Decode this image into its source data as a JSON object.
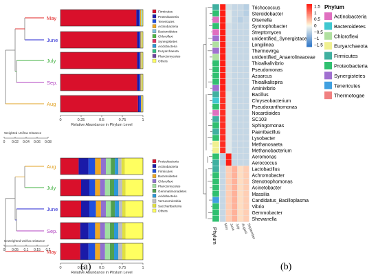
{
  "panel_labels": [
    "(a)",
    "(b)"
  ],
  "colors": {
    "Firmicutes": "#d9102b",
    "Proteobacteria": "#d9102b",
    "Tenericutes": "#1c3fd0",
    "Actinobacteria": "#1c3fd0",
    "Bacteroidetes": "#f0a820",
    "Chloroflexi": "#2c98d8",
    "Synergistetes": "#9ad0f0",
    "Acidobacteria": "#c0c0c0",
    "Euryarchaeota": "#7070d8",
    "Planctomycetes": "#50d040",
    "Others": "#ffff40",
    "Gemmatimonadetes": "#7fbf7f",
    "Verrucomicrobia": "#e0e060",
    "Saccharibacteria": "#ffe000"
  },
  "chart_data": [
    {
      "type": "bar",
      "title": "",
      "xlabel": "Relative Abundance in Phylum Level",
      "ylabel": "",
      "xlim": [
        0,
        1
      ],
      "xticks": [
        "0",
        "0.25",
        "0.5",
        "0.75",
        "1"
      ],
      "categories": [
        "May",
        "June",
        "July",
        "Sep.",
        "Aug"
      ],
      "category_colors": [
        "#e02020",
        "#2020d0",
        "#40b040",
        "#b040c0",
        "#e0a020"
      ],
      "legend": [
        "Firmicutes",
        "Proteobacteria",
        "Tenericutes",
        "Actinobacteria",
        "Bacteroidetes",
        "Chloroflexi",
        "Synergistetes",
        "Acidobacteria",
        "Euryarchaeota",
        "Planctomycetes",
        "Others"
      ],
      "legend_colors": [
        "#d9102b",
        "#1a1aa8",
        "#2050e0",
        "#f0a820",
        "#80c0e0",
        "#4ab840",
        "#e03060",
        "#2c98d8",
        "#30c080",
        "#7040a0",
        "#ffff60"
      ],
      "series": [
        {
          "name": "Firmicutes",
          "values": [
            0.92,
            0.93,
            0.93,
            0.93,
            0.94
          ]
        },
        {
          "name": "Proteobacteria",
          "values": [
            0.03,
            0.025,
            0.025,
            0.025,
            0.02
          ]
        },
        {
          "name": "Tenericutes",
          "values": [
            0.015,
            0.015,
            0.015,
            0.015,
            0.015
          ]
        },
        {
          "name": "Actinobacteria",
          "values": [
            0.01,
            0.01,
            0.01,
            0.01,
            0.01
          ]
        },
        {
          "name": "Bacteroidetes",
          "values": [
            0.01,
            0.005,
            0.005,
            0.005,
            0.005
          ]
        },
        {
          "name": "Others",
          "values": [
            0.015,
            0.015,
            0.015,
            0.015,
            0.01
          ]
        }
      ],
      "dendrogram_axis_label": "Weighted Unifrac Distance",
      "dendrogram_ticks": [
        "0",
        "0.02",
        "0.04",
        "0.06",
        "0.08"
      ]
    },
    {
      "type": "bar",
      "title": "",
      "xlabel": "Relative Abundance in Phylum Level",
      "ylabel": "",
      "xlim": [
        0,
        1
      ],
      "xticks": [
        "0",
        "0.25",
        "0.5",
        "0.75",
        "1"
      ],
      "categories": [
        "Aug",
        "July",
        "June",
        "Sep.",
        "May"
      ],
      "category_colors": [
        "#e0a020",
        "#40b040",
        "#2020d0",
        "#b040c0",
        "#e02020"
      ],
      "legend": [
        "Proteobacteria",
        "Actinobacteria",
        "Firmicutes",
        "Bacteroidetes",
        "Chloroflexi",
        "Planctomycetes",
        "Gemmatimonadetes",
        "Acidobacteria",
        "Verrucomicrobia",
        "Saccharibacteria",
        "Others"
      ],
      "legend_colors": [
        "#d9102b",
        "#1a1aa8",
        "#2050e0",
        "#f0a820",
        "#9070d0",
        "#a0e0a0",
        "#50a050",
        "#2c98d8",
        "#c0c0c0",
        "#e0e040",
        "#ffff60"
      ],
      "series": [
        {
          "name": "Proteobacteria",
          "values": [
            0.22,
            0.25,
            0.25,
            0.24,
            0.24
          ]
        },
        {
          "name": "Actinobacteria",
          "values": [
            0.12,
            0.1,
            0.1,
            0.1,
            0.1
          ]
        },
        {
          "name": "Firmicutes",
          "values": [
            0.08,
            0.07,
            0.08,
            0.08,
            0.08
          ]
        },
        {
          "name": "Bacteroidetes",
          "values": [
            0.07,
            0.06,
            0.06,
            0.06,
            0.06
          ]
        },
        {
          "name": "Chloroflexi",
          "values": [
            0.06,
            0.06,
            0.06,
            0.06,
            0.06
          ]
        },
        {
          "name": "Planctomycetes",
          "values": [
            0.06,
            0.06,
            0.06,
            0.06,
            0.06
          ]
        },
        {
          "name": "Gemmatimonadetes",
          "values": [
            0.05,
            0.05,
            0.05,
            0.05,
            0.05
          ]
        },
        {
          "name": "Acidobacteria",
          "values": [
            0.04,
            0.05,
            0.05,
            0.05,
            0.05
          ]
        },
        {
          "name": "Verrucomicrobia",
          "values": [
            0.04,
            0.05,
            0.04,
            0.05,
            0.05
          ]
        },
        {
          "name": "Saccharibacteria",
          "values": [
            0.04,
            0.04,
            0.04,
            0.04,
            0.04
          ]
        },
        {
          "name": "Others",
          "values": [
            0.22,
            0.21,
            0.21,
            0.21,
            0.21
          ]
        }
      ],
      "dendrogram_axis_label": "Unweighted Unifrac Distance",
      "dendrogram_ticks": [
        "0",
        "0.05",
        "0.1",
        "0.15",
        "0.2"
      ]
    },
    {
      "type": "heatmap",
      "title": "",
      "rows": [
        "Trichococcus",
        "Steroidobacter",
        "Olsenella",
        "Syntrophobacter",
        "Streptomyces",
        "unidentified_Synergistaceae",
        "Longilinea",
        "Thermovirga",
        "unidentified_Anaerolineaceae",
        "Thioalkalivibrio",
        "Pseudomonas",
        "Azoarcus",
        "Thioalkalispira",
        "Aminivibrio",
        "Bacillus",
        "Chryseobacterium",
        "Pseudoxanthomonas",
        "Nocardioides",
        "SC103",
        "Sphingomonas",
        "Paenibacillus",
        "Lysobacter",
        "Methanosaeta",
        "Methanobacterium",
        "Aeromonas",
        "Aerococcus",
        "Lactobacillus",
        "Achromobacter",
        "Stenotrophomonas",
        "Acinetobacter",
        "Massilia",
        "Candidatus_Bacilloplasma",
        "Vibrio",
        "Gemmobacter",
        "Shewanella"
      ],
      "columns": [
        "May",
        "June",
        "July",
        "August",
        "September"
      ],
      "annotation_label": "Phylum",
      "row_phylum": [
        "Firmicutes",
        "Proteobacteria",
        "Actinobacteria",
        "Proteobacteria",
        "Actinobacteria",
        "Synergistetes",
        "Chloroflexi",
        "Synergistetes",
        "Chloroflexi",
        "Proteobacteria",
        "Proteobacteria",
        "Proteobacteria",
        "Proteobacteria",
        "Synergistetes",
        "Firmicutes",
        "Bacteroidetes",
        "Proteobacteria",
        "Actinobacteria",
        "Firmicutes",
        "Proteobacteria",
        "Firmicutes",
        "Proteobacteria",
        "Euryarchaeota",
        "Euryarchaeota",
        "Proteobacteria",
        "Firmicutes",
        "Firmicutes",
        "Proteobacteria",
        "Proteobacteria",
        "Proteobacteria",
        "Proteobacteria",
        "Tenericutes",
        "Proteobacteria",
        "Proteobacteria",
        "Proteobacteria"
      ],
      "values": [
        [
          1.6,
          -0.3,
          -0.4,
          -0.4,
          -0.5
        ],
        [
          1.5,
          -0.2,
          -0.4,
          -0.4,
          -0.5
        ],
        [
          1.5,
          -0.2,
          -0.4,
          -0.5,
          -0.4
        ],
        [
          1.5,
          -0.3,
          -0.4,
          -0.4,
          -0.4
        ],
        [
          1.5,
          -0.3,
          -0.4,
          -0.4,
          -0.4
        ],
        [
          1.5,
          -0.3,
          -0.4,
          -0.4,
          -0.4
        ],
        [
          1.5,
          -0.3,
          -0.4,
          -0.4,
          -0.4
        ],
        [
          1.5,
          -0.3,
          -0.4,
          -0.4,
          -0.4
        ],
        [
          1.5,
          -0.3,
          -0.4,
          -0.4,
          -0.4
        ],
        [
          1.5,
          -0.3,
          -0.4,
          -0.4,
          -0.4
        ],
        [
          1.5,
          -0.3,
          -0.4,
          -0.4,
          -0.4
        ],
        [
          1.5,
          -0.3,
          -0.4,
          -0.4,
          -0.4
        ],
        [
          1.5,
          -0.3,
          -0.4,
          -0.4,
          -0.4
        ],
        [
          1.5,
          -0.3,
          -0.4,
          -0.4,
          -0.4
        ],
        [
          1.4,
          -0.2,
          -0.4,
          -0.4,
          -0.4
        ],
        [
          1.4,
          -0.2,
          -0.4,
          -0.4,
          -0.4
        ],
        [
          1.4,
          -0.2,
          -0.4,
          -0.4,
          -0.4
        ],
        [
          1.4,
          -0.2,
          -0.4,
          -0.4,
          -0.4
        ],
        [
          1.4,
          -0.2,
          -0.4,
          -0.4,
          -0.4
        ],
        [
          1.4,
          -0.2,
          -0.4,
          -0.4,
          -0.4
        ],
        [
          1.4,
          -0.2,
          -0.4,
          -0.4,
          -0.4
        ],
        [
          1.4,
          -0.2,
          -0.4,
          -0.4,
          -0.4
        ],
        [
          1.4,
          -0.2,
          -0.4,
          -0.4,
          -0.4
        ],
        [
          1.4,
          -0.2,
          -0.4,
          -0.4,
          -0.4
        ],
        [
          -0.5,
          1.7,
          -0.4,
          -0.4,
          -0.4
        ],
        [
          -0.5,
          1.7,
          -0.4,
          -0.4,
          -0.4
        ],
        [
          -0.4,
          0.3,
          0.5,
          0.2,
          0.3
        ],
        [
          -0.4,
          0.3,
          0.5,
          0.2,
          0.3
        ],
        [
          -0.4,
          0.3,
          0.5,
          0.2,
          0.3
        ],
        [
          -0.4,
          0.3,
          0.5,
          0.2,
          0.3
        ],
        [
          -0.4,
          0.3,
          0.5,
          0.2,
          0.3
        ],
        [
          -0.4,
          0.3,
          0.5,
          0.2,
          0.3
        ],
        [
          -0.4,
          0.3,
          0.5,
          0.2,
          0.3
        ],
        [
          -0.4,
          0.3,
          0.5,
          0.2,
          0.3
        ],
        [
          -0.4,
          0.3,
          0.5,
          0.2,
          0.3
        ]
      ],
      "colorbar_ticks": [
        "1.5",
        "1",
        "0.5",
        "0",
        "−0.5",
        "−1",
        "−1.5"
      ],
      "vmin": -1.5,
      "vmax": 1.5,
      "legend_title": "Phylum",
      "legend": [
        "Actinobacteria",
        "Bacteroidetes",
        "Chloroflexi",
        "Euryarchaeota",
        "Firmicutes",
        "Proteobacteria",
        "Synergistetes",
        "Tenericutes",
        "Thermotogae"
      ],
      "legend_colors": [
        "#e070c0",
        "#40c8d0",
        "#b0e0a0",
        "#f0f090",
        "#40b0a0",
        "#30c070",
        "#a070d0",
        "#40a0e0",
        "#f08080"
      ]
    }
  ]
}
